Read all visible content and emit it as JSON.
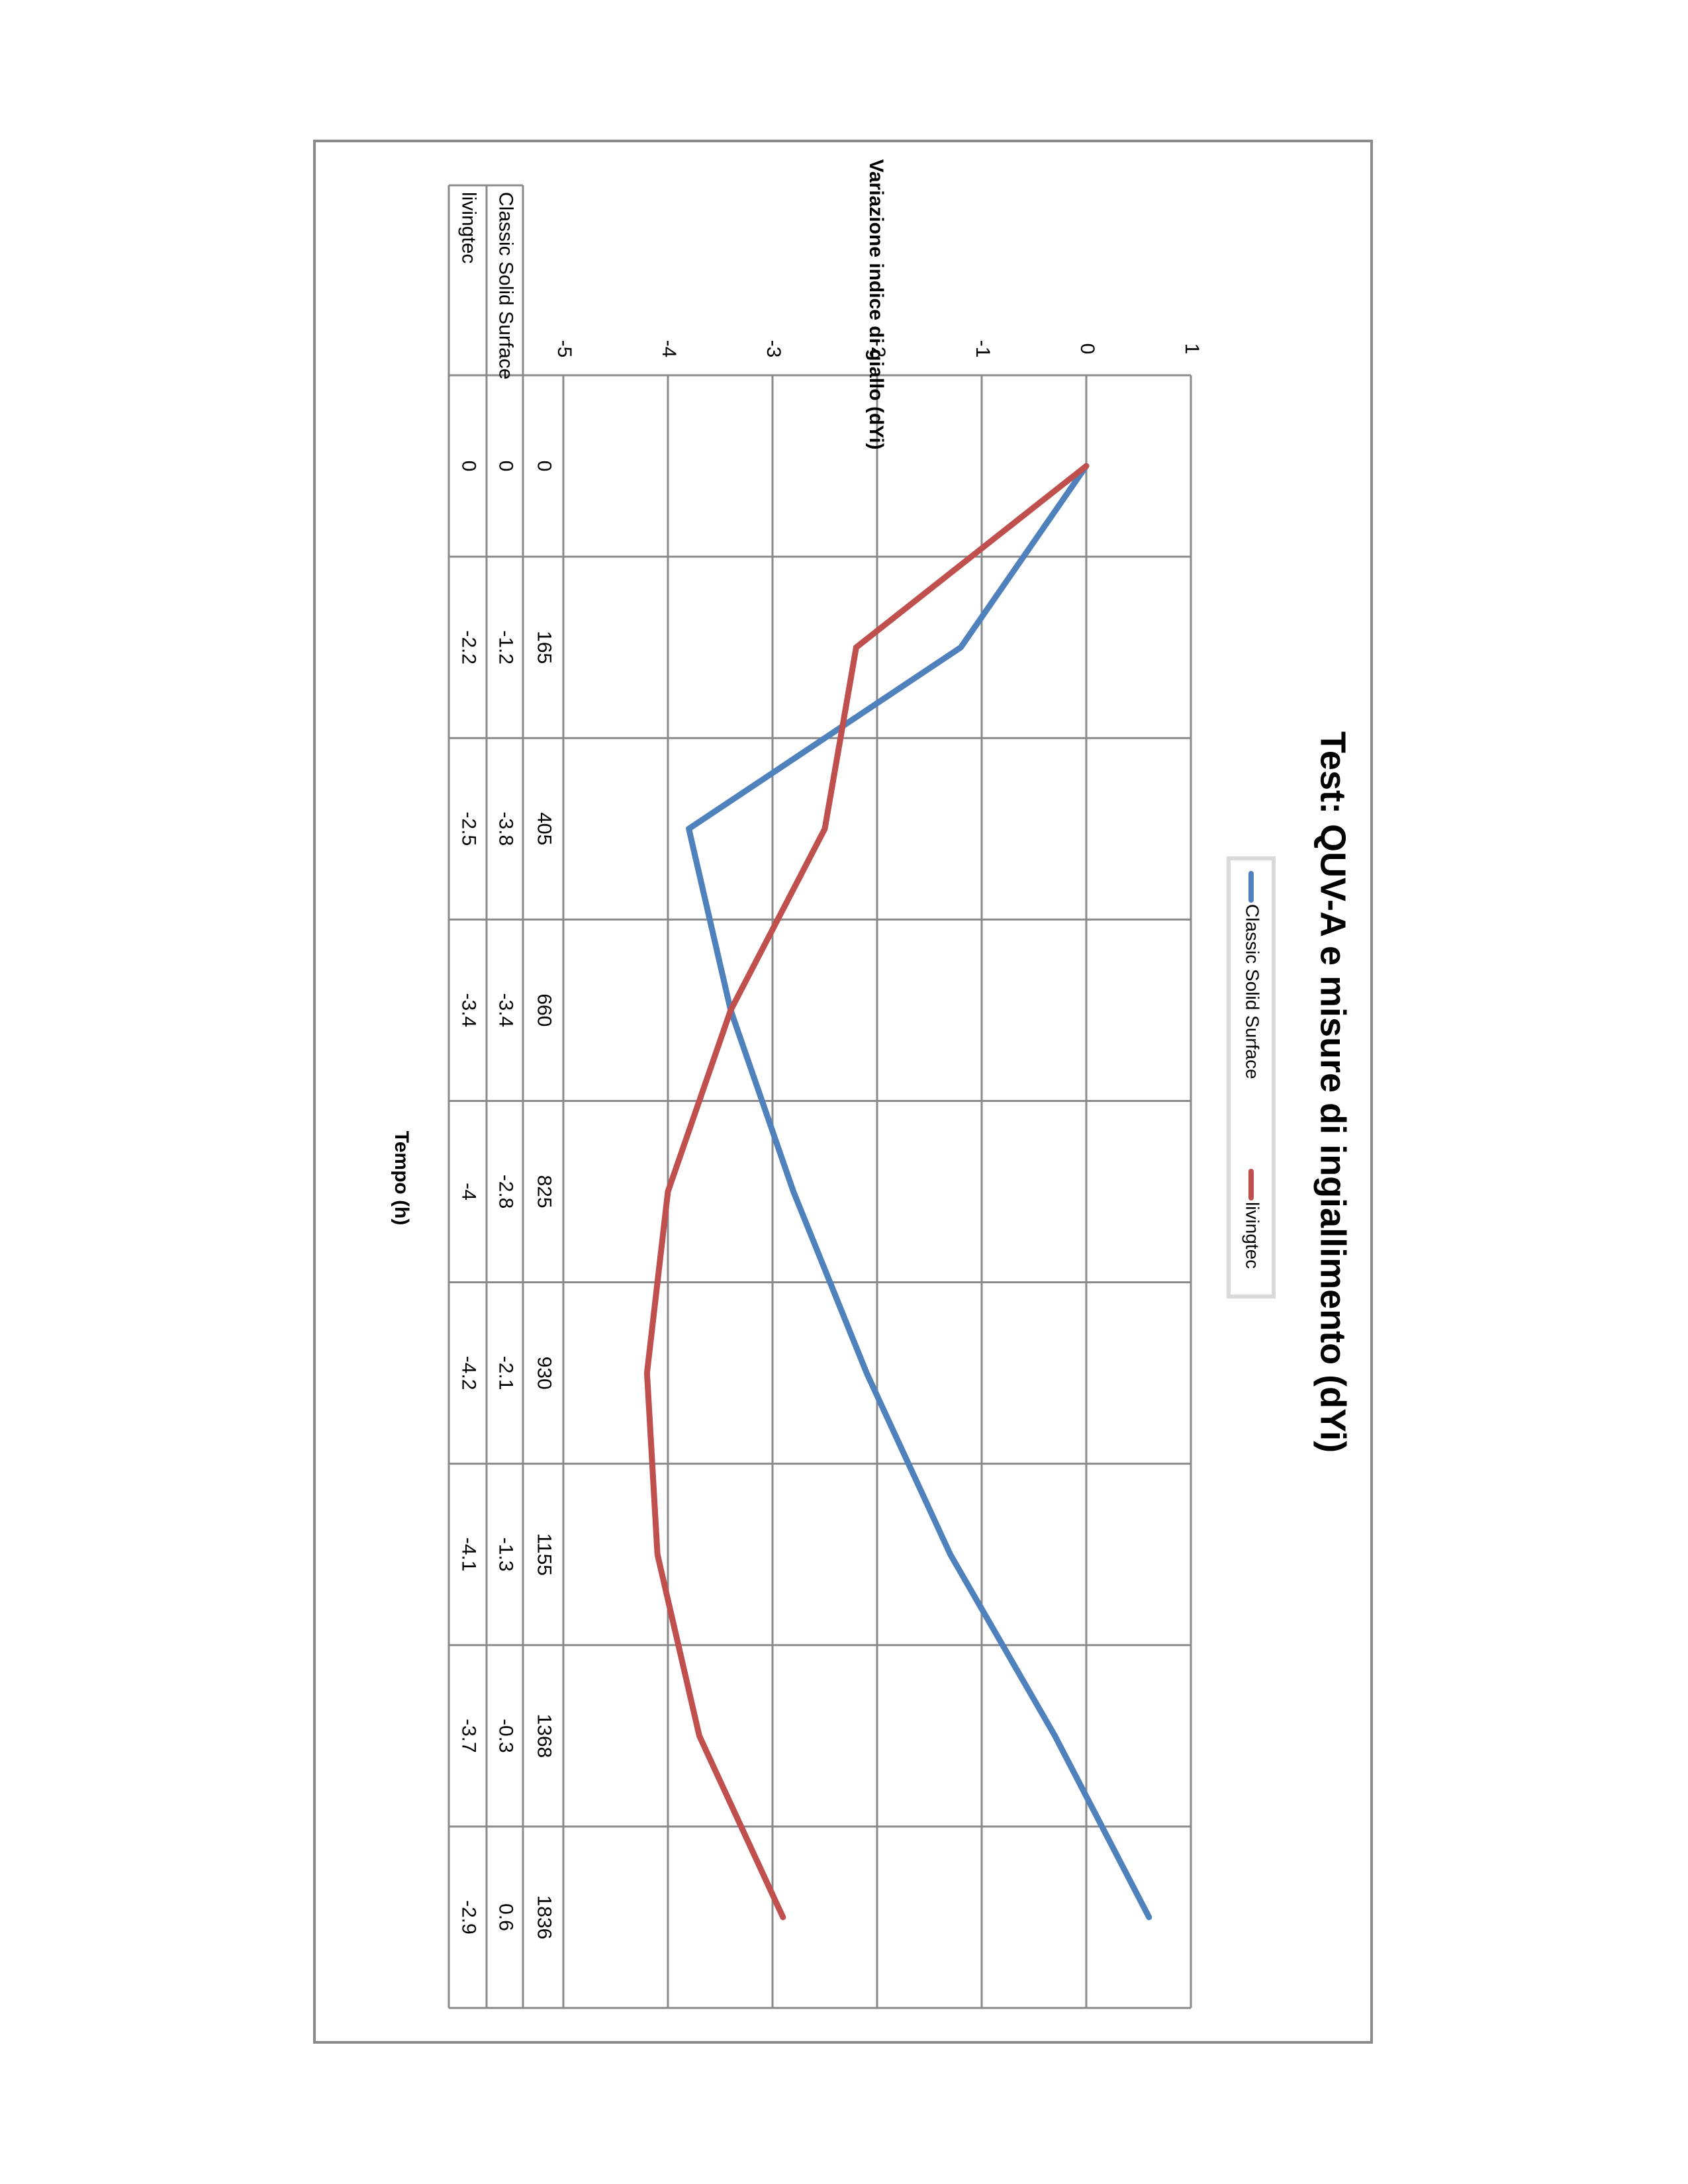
{
  "chart_data": {
    "type": "line",
    "orientation": "rotated-90-clockwise",
    "title": "Test: QUV-A e misure di ingiallimento (dYi)",
    "xlabel": "Tempo (h)",
    "ylabel": "Variazione indice di giallo (dYi)",
    "ylim": [
      -5,
      1
    ],
    "yticks": [
      "-5",
      "-4",
      "-3",
      "-2",
      "-1",
      "0",
      "1"
    ],
    "categories": [
      "0",
      "165",
      "405",
      "660",
      "825",
      "930",
      "1155",
      "1368",
      "1836"
    ],
    "grid": true,
    "legend_position": "top",
    "data_table": true,
    "series": [
      {
        "name": "Classic Solid Surface",
        "color": "#4f81bd",
        "values": [
          0,
          -1.2,
          -3.8,
          -3.4,
          -2.8,
          -2.1,
          -1.3,
          -0.3,
          0.6
        ]
      },
      {
        "name": "livingtec",
        "color": "#c0504d",
        "values": [
          0,
          -2.2,
          -2.5,
          -3.4,
          -4,
          -4.2,
          -4.1,
          -3.7,
          -2.9
        ]
      }
    ]
  },
  "table": {
    "rows": [
      {
        "label": "Classic Solid Surface",
        "cells": [
          "0",
          "-1.2",
          "-3.8",
          "-3.4",
          "-2.8",
          "-2.1",
          "-1.3",
          "-0.3",
          "0.6"
        ]
      },
      {
        "label": "livingtec",
        "cells": [
          "0",
          "-2.2",
          "-2.5",
          "-3.4",
          "-4",
          "-4.2",
          "-4.1",
          "-3.7",
          "-2.9"
        ]
      }
    ]
  },
  "colors": {
    "grid": "#8a8a8a",
    "frame": "#8a8a8a",
    "legend_border": "#d9d9d9"
  }
}
